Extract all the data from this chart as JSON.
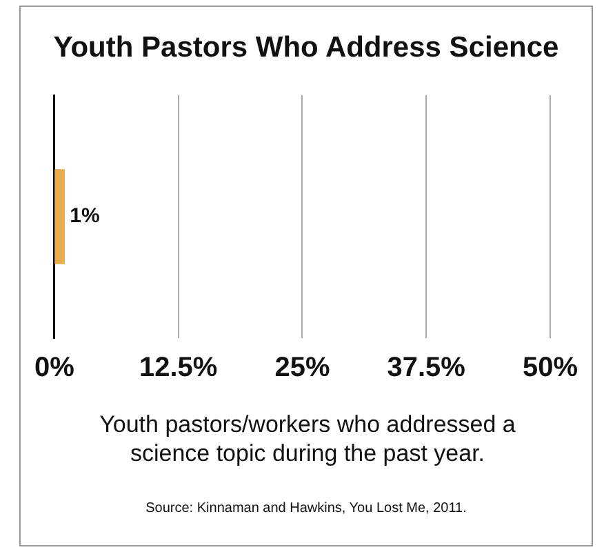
{
  "chart_data": {
    "type": "bar",
    "orientation": "horizontal",
    "title": "Youth Pastors Who Address Science",
    "xlabel": "Youth pastors/workers who addressed a science topic during the past year.",
    "categories": [
      null
    ],
    "values": [
      1
    ],
    "value_labels": [
      "1%"
    ],
    "color": "#e8ad4f",
    "xlim": [
      0,
      50
    ],
    "xticks": [
      {
        "value": 0,
        "label": "0%"
      },
      {
        "value": 12.5,
        "label": "12.5%"
      },
      {
        "value": 25,
        "label": "25%"
      },
      {
        "value": 37.5,
        "label": "37.5%"
      },
      {
        "value": 50,
        "label": "50%"
      }
    ],
    "grid": "x",
    "legend": false,
    "annotations": [
      "Source: Kinnaman and Hawkins, You Lost Me, 2011."
    ]
  }
}
